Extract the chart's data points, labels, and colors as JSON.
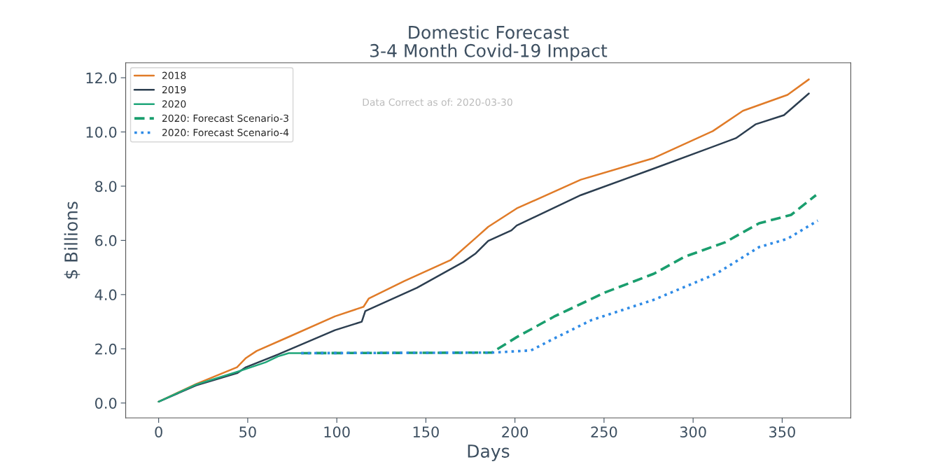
{
  "chart_data": {
    "type": "line",
    "title": "Domestic Forecast\n3-4 Month Covid-19 Impact",
    "xlabel": "Days",
    "ylabel": "$ Billions",
    "annotations": [
      "Data Correct as of: 2020-03-30"
    ],
    "xlim": [
      -18.5,
      388.5
    ],
    "xticks": [
      0,
      50,
      100,
      150,
      200,
      250,
      300,
      350
    ],
    "ylim": [
      -0.55,
      12.55
    ],
    "yticks": [
      {
        "value": 0,
        "label": "0.0"
      },
      {
        "value": 2,
        "label": "2.0"
      },
      {
        "value": 4,
        "label": "4.0"
      },
      {
        "value": 6,
        "label": "6.0"
      },
      {
        "value": 8,
        "label": "8.0"
      },
      {
        "value": 10,
        "label": "10.0"
      },
      {
        "value": 12,
        "label": "12.0"
      }
    ],
    "grid": false,
    "legend": "top left",
    "series": [
      {
        "name": "2018",
        "color": "#e07b28",
        "line_style": "solid",
        "x": [
          0,
          21,
          44,
          49,
          55,
          73,
          99,
          115,
          118,
          138,
          164,
          178,
          185,
          201,
          237,
          278,
          311,
          328,
          353,
          365
        ],
        "values": [
          0.05,
          0.7,
          1.32,
          1.66,
          1.92,
          2.44,
          3.2,
          3.55,
          3.86,
          4.5,
          5.28,
          6.09,
          6.5,
          7.18,
          8.24,
          9.04,
          10.03,
          10.78,
          11.37,
          11.94
        ]
      },
      {
        "name": "2019",
        "color": "#2c3e50",
        "line_style": "solid",
        "x": [
          0,
          21,
          44,
          49,
          67,
          99,
          114,
          116,
          145,
          171,
          178,
          185,
          198,
          201,
          237,
          278,
          324,
          335,
          351,
          365
        ],
        "values": [
          0.05,
          0.65,
          1.1,
          1.32,
          1.79,
          2.69,
          3.0,
          3.39,
          4.25,
          5.2,
          5.52,
          5.98,
          6.37,
          6.55,
          7.67,
          8.65,
          9.77,
          10.28,
          10.62,
          11.42
        ]
      },
      {
        "name": "2020",
        "color": "#1fa67a",
        "line_style": "solid",
        "x": [
          0,
          21,
          44,
          60,
          67,
          73,
          80
        ],
        "values": [
          0.05,
          0.68,
          1.15,
          1.5,
          1.72,
          1.84,
          1.84
        ]
      },
      {
        "name": "2020: Forecast Scenario-3",
        "color": "#1a9e6e",
        "line_style": "dashed",
        "x": [
          80,
          187,
          201,
          222,
          251,
          278,
          295,
          318,
          337,
          355,
          369
        ],
        "values": [
          1.84,
          1.86,
          2.43,
          3.19,
          4.09,
          4.77,
          5.39,
          5.93,
          6.63,
          6.94,
          7.67
        ]
      },
      {
        "name": "2020: Forecast Scenario-4",
        "color": "#2f8be6",
        "line_style": "dotted",
        "x": [
          80,
          187,
          209,
          222,
          243,
          278,
          313,
          337,
          353,
          370
        ],
        "values": [
          1.84,
          1.86,
          1.94,
          2.38,
          3.06,
          3.81,
          4.77,
          5.75,
          6.06,
          6.73
        ]
      }
    ]
  }
}
